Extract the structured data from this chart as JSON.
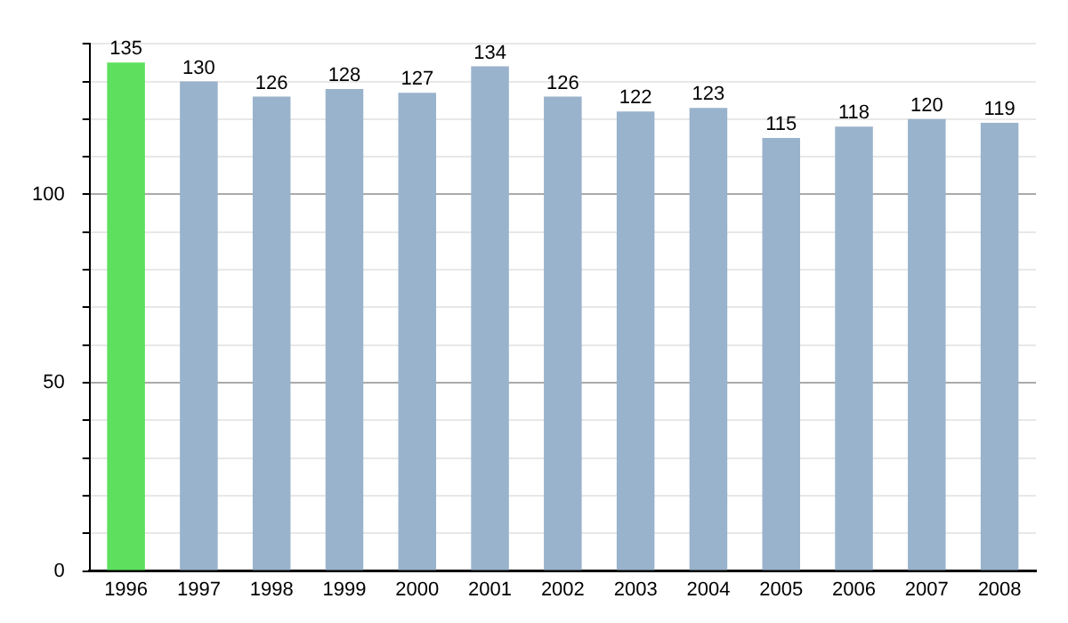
{
  "chart_data": {
    "type": "bar",
    "categories": [
      "1996",
      "1997",
      "1998",
      "1999",
      "2000",
      "2001",
      "2002",
      "2003",
      "2004",
      "2005",
      "2006",
      "2007",
      "2008"
    ],
    "values": [
      135,
      130,
      126,
      128,
      127,
      134,
      126,
      122,
      123,
      115,
      118,
      120,
      119
    ],
    "colors": [
      "#5ee05e",
      "#9ab3cc",
      "#9ab3cc",
      "#9ab3cc",
      "#9ab3cc",
      "#9ab3cc",
      "#9ab3cc",
      "#9ab3cc",
      "#9ab3cc",
      "#9ab3cc",
      "#9ab3cc",
      "#9ab3cc",
      "#9ab3cc"
    ],
    "ylim": [
      0,
      140
    ],
    "yticks": [
      0,
      {
        "value": 10,
        "label": null
      },
      {
        "value": 20,
        "label": null
      },
      {
        "value": 30,
        "label": null
      },
      {
        "value": 40,
        "label": null
      },
      50,
      {
        "value": 60,
        "label": null
      },
      {
        "value": 70,
        "label": null
      },
      {
        "value": 80,
        "label": null
      },
      {
        "value": 90,
        "label": null
      },
      100,
      {
        "value": 110,
        "label": null
      },
      {
        "value": 120,
        "label": null
      },
      {
        "value": 130,
        "label": null
      },
      {
        "value": 140,
        "label": null
      }
    ],
    "grid": "y",
    "data_labels": true
  }
}
